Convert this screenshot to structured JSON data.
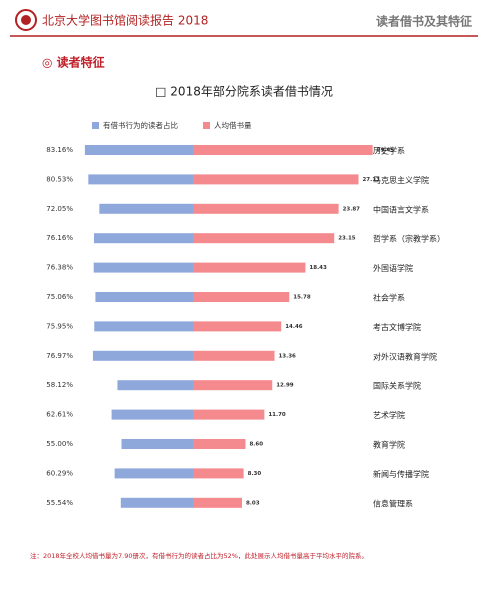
{
  "header": {
    "title": "北京大学图书馆阅读报告 2018",
    "section": "读者借书及其特征"
  },
  "subsection": "◎  读者特征",
  "chart_data": {
    "type": "butterfly",
    "title": "□  2018年部分院系读者借书情况",
    "legend": "top",
    "categories": [
      "历史学系",
      "马克思主义学院",
      "中国语言文学系",
      "哲学系（宗教学系）",
      "外国语学院",
      "社会学系",
      "考古文博学院",
      "对外汉语教育学院",
      "国际关系学院",
      "艺术学院",
      "教育学院",
      "新闻与传播学院",
      "信息管理系"
    ],
    "series": [
      {
        "name": "有借书行为的读者占比",
        "color": "#8fa8dc",
        "values": [
          83.16,
          80.53,
          72.05,
          76.16,
          76.38,
          75.06,
          75.95,
          76.97,
          58.12,
          62.61,
          55.0,
          60.29,
          55.54
        ],
        "value_labels": [
          "83.16%",
          "80.53%",
          "72.05%",
          "76.16%",
          "76.38%",
          "75.06%",
          "75.95%",
          "76.97%",
          "58.12%",
          "62.61%",
          "55.00%",
          "60.29%",
          "55.54%"
        ]
      },
      {
        "name": "人均借书量",
        "color": "#f4898e",
        "values": [
          29.45,
          27.13,
          23.87,
          23.15,
          18.43,
          15.78,
          14.46,
          13.36,
          12.99,
          11.7,
          8.6,
          8.3,
          8.03
        ],
        "value_labels": [
          "29.45",
          "27.13",
          "23.87",
          "23.15",
          "18.43",
          "15.78",
          "14.46",
          "13.36",
          "12.99",
          "11.70",
          "8.60",
          "8.30",
          "8.03"
        ]
      }
    ]
  },
  "footnote": "注：2018年全校人均借书量为7.90册次，有借书行为的读者占比为52%，此处展示人均借书量高于平均水平的院系。"
}
